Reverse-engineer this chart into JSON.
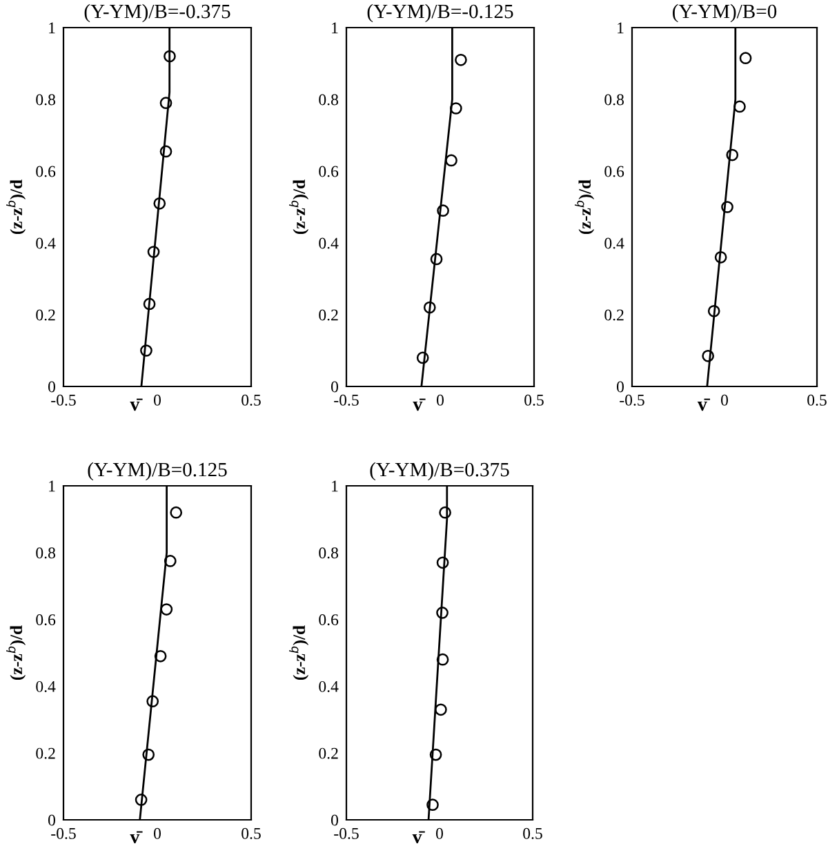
{
  "chart_data": [
    {
      "type": "scatter",
      "title": "(Y-YM)/B=-0.375",
      "xlabel": "v̄",
      "ylabel": "(z-z$^{b}$)/d",
      "xlim": [
        -0.5,
        0.5
      ],
      "xticks": [
        -0.5,
        0,
        0.5
      ],
      "ylim": [
        0,
        1
      ],
      "yticks": [
        0,
        0.2,
        0.4,
        0.6,
        0.8,
        1
      ],
      "grid": false,
      "legend": false,
      "series": [
        {
          "type": "line",
          "color": "#000000",
          "marker": "none",
          "x": [
            -0.085,
            0.065,
            0.065
          ],
          "values": [
            0,
            0.82,
            1
          ]
        },
        {
          "color": "#000000",
          "marker": "circle",
          "x": [
            0.066,
            0.046,
            0.046,
            0.012,
            -0.02,
            -0.042,
            -0.059
          ],
          "values": [
            0.92,
            0.79,
            0.655,
            0.51,
            0.375,
            0.23,
            0.1
          ]
        }
      ]
    },
    {
      "type": "scatter",
      "title": "(Y-YM)/B=-0.125",
      "xlabel": "v̄",
      "ylabel": "(z-z$^{b}$)/d",
      "xlim": [
        -0.5,
        0.5
      ],
      "xticks": [
        -0.5,
        0,
        0.5
      ],
      "ylim": [
        0,
        1
      ],
      "yticks": [
        0,
        0.2,
        0.4,
        0.6,
        0.8,
        1
      ],
      "grid": false,
      "legend": false,
      "series": [
        {
          "type": "line",
          "color": "#000000",
          "marker": "none",
          "x": [
            -0.1,
            0.064,
            0.064
          ],
          "values": [
            0,
            0.8,
            1
          ]
        },
        {
          "color": "#000000",
          "marker": "circle",
          "x": [
            0.11,
            0.084,
            0.059,
            0.015,
            -0.02,
            -0.056,
            -0.093
          ],
          "values": [
            0.91,
            0.775,
            0.63,
            0.49,
            0.355,
            0.22,
            0.08
          ]
        }
      ]
    },
    {
      "type": "scatter",
      "title": "(Y-YM)/B=0",
      "xlabel": "v̄",
      "ylabel": "(z-z$^{b}$)/d",
      "xlim": [
        -0.5,
        0.5
      ],
      "xticks": [
        -0.5,
        0,
        0.5
      ],
      "ylim": [
        0,
        1
      ],
      "yticks": [
        0,
        0.2,
        0.4,
        0.6,
        0.8,
        1
      ],
      "grid": false,
      "legend": false,
      "series": [
        {
          "type": "line",
          "color": "#000000",
          "marker": "none",
          "x": [
            -0.094,
            0.059,
            0.059
          ],
          "values": [
            0,
            0.8,
            1
          ]
        },
        {
          "color": "#000000",
          "marker": "circle",
          "x": [
            0.114,
            0.082,
            0.042,
            0.015,
            -0.02,
            -0.057,
            -0.089
          ],
          "values": [
            0.915,
            0.78,
            0.645,
            0.5,
            0.36,
            0.21,
            0.085
          ]
        }
      ]
    },
    {
      "type": "scatter",
      "title": "(Y-YM)/B=0.125",
      "xlabel": "v̄",
      "ylabel": "(z-z$^{b}$)/d",
      "xlim": [
        -0.5,
        0.5
      ],
      "xticks": [
        -0.5,
        0,
        0.5
      ],
      "ylim": [
        0,
        1
      ],
      "yticks": [
        0,
        0.2,
        0.4,
        0.6,
        0.8,
        1
      ],
      "grid": false,
      "legend": false,
      "series": [
        {
          "type": "line",
          "color": "#000000",
          "marker": "none",
          "x": [
            -0.093,
            0.05,
            0.05
          ],
          "values": [
            0,
            0.8,
            1
          ]
        },
        {
          "color": "#000000",
          "marker": "circle",
          "x": [
            0.1,
            0.069,
            0.049,
            0.017,
            -0.025,
            -0.047,
            -0.086
          ],
          "values": [
            0.92,
            0.775,
            0.63,
            0.49,
            0.355,
            0.195,
            0.06
          ]
        }
      ]
    },
    {
      "type": "scatter",
      "title": "(Y-YM)/B=0.375",
      "xlabel": "v̄",
      "ylabel": "(z-z$^{b}$)/d",
      "xlim": [
        -0.5,
        0.5
      ],
      "xticks": [
        -0.5,
        0,
        0.5
      ],
      "ylim": [
        0,
        1
      ],
      "yticks": [
        0,
        0.2,
        0.4,
        0.6,
        0.8,
        1
      ],
      "grid": false,
      "legend": false,
      "series": [
        {
          "type": "line",
          "color": "#000000",
          "marker": "none",
          "x": [
            -0.059,
            0.04,
            0.04
          ],
          "values": [
            0,
            0.9,
            1
          ]
        },
        {
          "color": "#000000",
          "marker": "circle",
          "x": [
            0.03,
            0.017,
            0.015,
            0.017,
            0.007,
            -0.02,
            -0.037
          ],
          "values": [
            0.92,
            0.77,
            0.62,
            0.48,
            0.33,
            0.195,
            0.045
          ]
        }
      ]
    }
  ]
}
